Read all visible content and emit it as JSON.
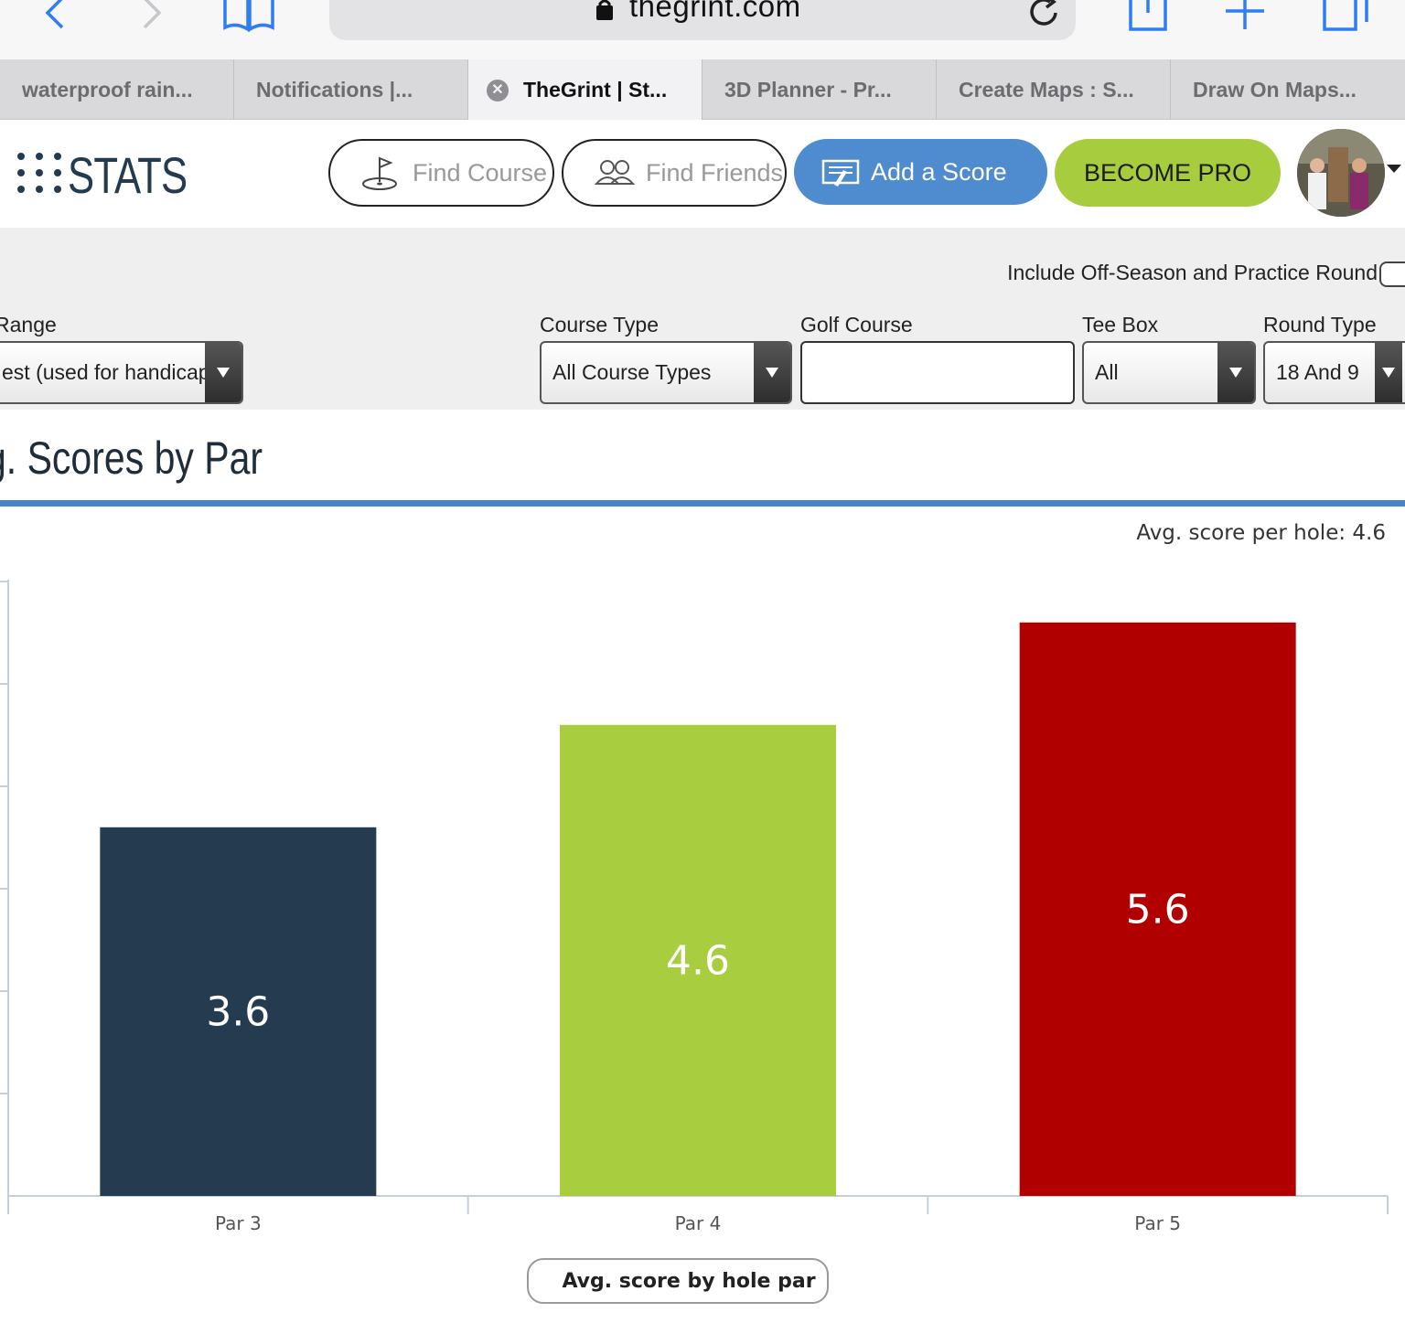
{
  "browser": {
    "url": "thegrint.com",
    "tabs": [
      {
        "label": "waterproof rain..."
      },
      {
        "label": "Notifications |..."
      },
      {
        "label": "TheGrint | St..."
      },
      {
        "label": "3D Planner - Pr..."
      },
      {
        "label": "Create Maps : S..."
      },
      {
        "label": "Draw On Maps..."
      }
    ]
  },
  "header": {
    "logo": "STATS",
    "find_course": "Find Course",
    "find_friends": "Find Friends",
    "add_score": "Add a Score",
    "become_pro": "BECOME PRO"
  },
  "filters": {
    "offseason_label": "Include Off-Season and Practice Round",
    "range_label": "Range",
    "range_value": "est (used for handicap)",
    "course_type_label": "Course Type",
    "course_type_value": "All Course Types",
    "golf_course_label": "Golf Course",
    "golf_course_value": "",
    "tee_box_label": "Tee Box",
    "tee_box_value": "All",
    "round_type_label": "Round Type",
    "round_type_value": "18 And 9"
  },
  "section": {
    "title": "g. Scores by Par"
  },
  "colors": {
    "accent": "#4a83c1",
    "pro": "#a7cc3e",
    "bar_par3": "#253b4f",
    "bar_par4": "#a8ce40",
    "bar_par5": "#b00000"
  },
  "chart_data": {
    "type": "bar",
    "title": "",
    "annotation": "Avg. score per hole: 4.6",
    "categories": [
      "Par 3",
      "Par 4",
      "Par 5"
    ],
    "series": [
      {
        "name": "Avg. score by hole par",
        "values": [
          3.6,
          4.6,
          5.6
        ]
      }
    ],
    "data_labels": [
      "3.6",
      "4.6",
      "5.6"
    ],
    "ylim": [
      0,
      6
    ],
    "grid": false,
    "legend": "bottom-center"
  }
}
